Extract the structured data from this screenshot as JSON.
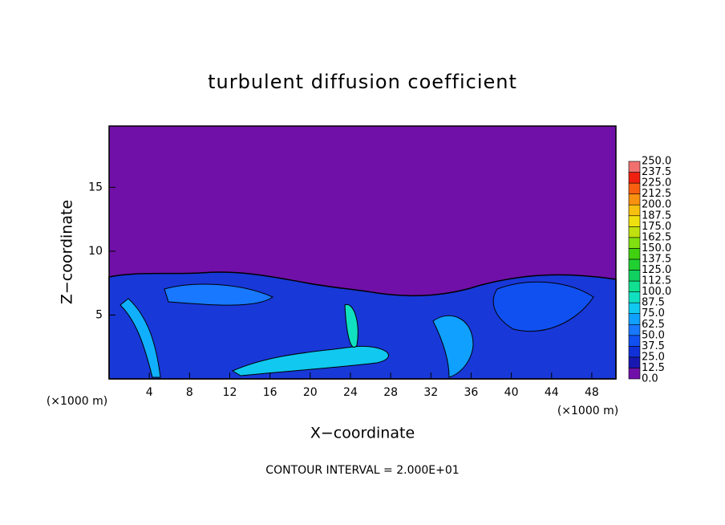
{
  "chart_data": {
    "type": "contour",
    "title": "turbulent diffusion coefficient",
    "x_label": "X−coordinate",
    "y_label": "Z−coordinate",
    "x_unit": "(×1000 m)",
    "y_unit": "(×1000 m)",
    "annotation": "CONTOUR INTERVAL = 2.000E+01",
    "xlim": [
      0,
      50.4
    ],
    "ylim": [
      0,
      19.8
    ],
    "xticks": [
      4,
      8,
      12,
      16,
      20,
      24,
      28,
      32,
      36,
      40,
      44,
      48
    ],
    "yticks": [
      5,
      10,
      15
    ],
    "background_color": "#7010a8",
    "colorbar": {
      "levels": [
        {
          "value": 0,
          "label": "0.0"
        },
        {
          "value": 12.5,
          "label": "12.5"
        },
        {
          "value": 25,
          "label": "25.0"
        },
        {
          "value": 37.5,
          "label": "37.5"
        },
        {
          "value": 50,
          "label": "50.0"
        },
        {
          "value": 62.5,
          "label": "62.5"
        },
        {
          "value": 75,
          "label": "75.0"
        },
        {
          "value": 87.5,
          "label": "87.5"
        },
        {
          "value": 100,
          "label": "100.0"
        },
        {
          "value": 112.5,
          "label": "112.5"
        },
        {
          "value": 125,
          "label": "125.0"
        },
        {
          "value": 137.5,
          "label": "137.5"
        },
        {
          "value": 150,
          "label": "150.0"
        },
        {
          "value": 162.5,
          "label": "162.5"
        },
        {
          "value": 175,
          "label": "175.0"
        },
        {
          "value": 187.5,
          "label": "187.5"
        },
        {
          "value": 200,
          "label": "200.0"
        },
        {
          "value": 212.5,
          "label": "212.5"
        },
        {
          "value": 225,
          "label": "225.0"
        },
        {
          "value": 237.5,
          "label": "237.5"
        },
        {
          "value": 250,
          "label": "250.0"
        }
      ],
      "colors": [
        "#7010a8",
        "#1818b0",
        "#1030d8",
        "#1050f0",
        "#1878ff",
        "#10a0ff",
        "#10c8f0",
        "#10e0c0",
        "#10e090",
        "#10d060",
        "#20d030",
        "#40d010",
        "#80e010",
        "#c0e010",
        "#f0e010",
        "#f8c010",
        "#f89010",
        "#f86010",
        "#f02010",
        "#f07070"
      ]
    }
  }
}
